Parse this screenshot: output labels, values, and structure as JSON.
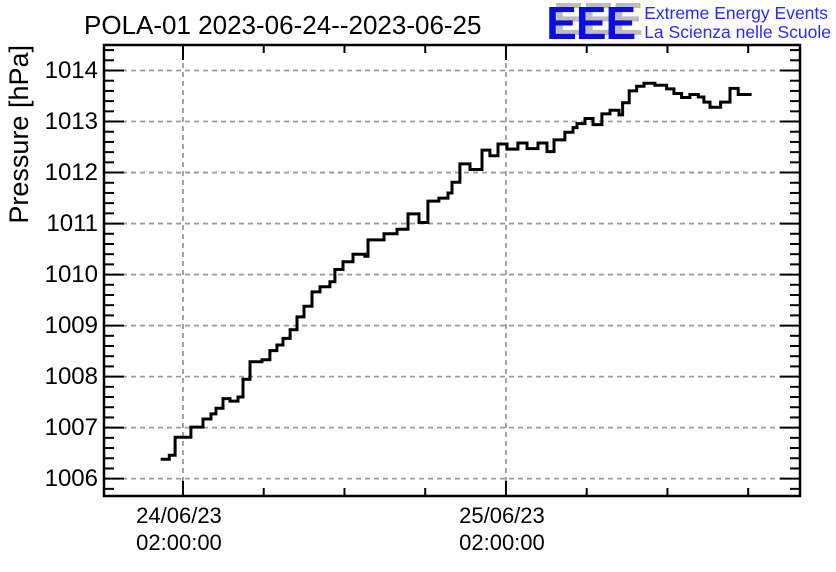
{
  "header": {
    "title": "POLA-01 2023-06-24--2023-06-25"
  },
  "logo": {
    "acronym": "EEE",
    "line1": "Extreme Energy Events",
    "line2": "La Scienza nelle Scuole",
    "blue": "#0d0de0",
    "text_blue": "#2a2aff",
    "shadow_gray": "#bdbdbd"
  },
  "chart_data": {
    "type": "line",
    "style": "step-after",
    "title": "POLA-01 2023-06-24--2023-06-25",
    "ylabel": "Pressure [hPa]",
    "xlabel": "",
    "grid": {
      "show": true,
      "color": "#9c9c9c",
      "dash": "dashed"
    },
    "line_color": "#000000",
    "background": "#ffffff",
    "x_axis": {
      "unit": "hours since 2023-06-24 00:00",
      "range": [
        -3.87,
        47.85
      ],
      "major_ticks": [
        {
          "t": 2,
          "label_line1": "24/06/23",
          "label_line2": "02:00:00"
        },
        {
          "t": 26,
          "label_line1": "25/06/23",
          "label_line2": "02:00:00"
        }
      ],
      "minor_ticks": [
        8,
        14,
        20,
        32,
        38,
        44
      ],
      "minor_interval_hours": 6
    },
    "y_axis": {
      "range": [
        1005.66,
        1014.5
      ],
      "major_ticks": [
        1006,
        1007,
        1008,
        1009,
        1010,
        1011,
        1012,
        1013,
        1014
      ],
      "minor_step": 0.2
    },
    "series_name": "Pressure",
    "points": [
      [
        0.34,
        1006.38
      ],
      [
        0.98,
        1006.46
      ],
      [
        1.41,
        1006.81
      ],
      [
        2.59,
        1007.01
      ],
      [
        3.49,
        1007.17
      ],
      [
        4.08,
        1007.27
      ],
      [
        4.45,
        1007.38
      ],
      [
        4.97,
        1007.57
      ],
      [
        5.49,
        1007.52
      ],
      [
        6.09,
        1007.6
      ],
      [
        6.46,
        1007.95
      ],
      [
        6.98,
        1008.29
      ],
      [
        7.87,
        1008.33
      ],
      [
        8.46,
        1008.51
      ],
      [
        8.98,
        1008.62
      ],
      [
        9.43,
        1008.75
      ],
      [
        9.96,
        1008.92
      ],
      [
        10.47,
        1009.17
      ],
      [
        10.99,
        1009.38
      ],
      [
        11.59,
        1009.66
      ],
      [
        12.18,
        1009.76
      ],
      [
        12.92,
        1009.86
      ],
      [
        13.29,
        1010.1
      ],
      [
        13.89,
        1010.25
      ],
      [
        14.63,
        1010.4
      ],
      [
        15.52,
        1010.36
      ],
      [
        15.75,
        1010.68
      ],
      [
        16.94,
        1010.8
      ],
      [
        17.9,
        1010.89
      ],
      [
        18.72,
        1011.19
      ],
      [
        19.54,
        1011.02
      ],
      [
        20.2,
        1011.44
      ],
      [
        21.02,
        1011.5
      ],
      [
        21.69,
        1011.6
      ],
      [
        21.99,
        1011.81
      ],
      [
        22.58,
        1012.17
      ],
      [
        23.33,
        1012.06
      ],
      [
        24.22,
        1012.44
      ],
      [
        24.81,
        1012.33
      ],
      [
        25.41,
        1012.56
      ],
      [
        26.08,
        1012.46
      ],
      [
        26.89,
        1012.58
      ],
      [
        27.56,
        1012.47
      ],
      [
        28.38,
        1012.58
      ],
      [
        29.05,
        1012.41
      ],
      [
        29.57,
        1012.64
      ],
      [
        30.38,
        1012.79
      ],
      [
        30.98,
        1012.88
      ],
      [
        31.28,
        1012.96
      ],
      [
        31.87,
        1013.06
      ],
      [
        32.47,
        1012.94
      ],
      [
        33.13,
        1013.15
      ],
      [
        33.73,
        1013.22
      ],
      [
        34.4,
        1013.13
      ],
      [
        34.67,
        1013.37
      ],
      [
        35.16,
        1013.6
      ],
      [
        35.71,
        1013.69
      ],
      [
        36.26,
        1013.75
      ],
      [
        37.07,
        1013.71
      ],
      [
        37.94,
        1013.64
      ],
      [
        38.48,
        1013.55
      ],
      [
        39.05,
        1013.47
      ],
      [
        39.67,
        1013.53
      ],
      [
        40.29,
        1013.48
      ],
      [
        40.71,
        1013.38
      ],
      [
        41.16,
        1013.28
      ],
      [
        41.95,
        1013.38
      ],
      [
        42.65,
        1013.65
      ],
      [
        43.26,
        1013.53
      ]
    ],
    "end_t": 44.25
  }
}
